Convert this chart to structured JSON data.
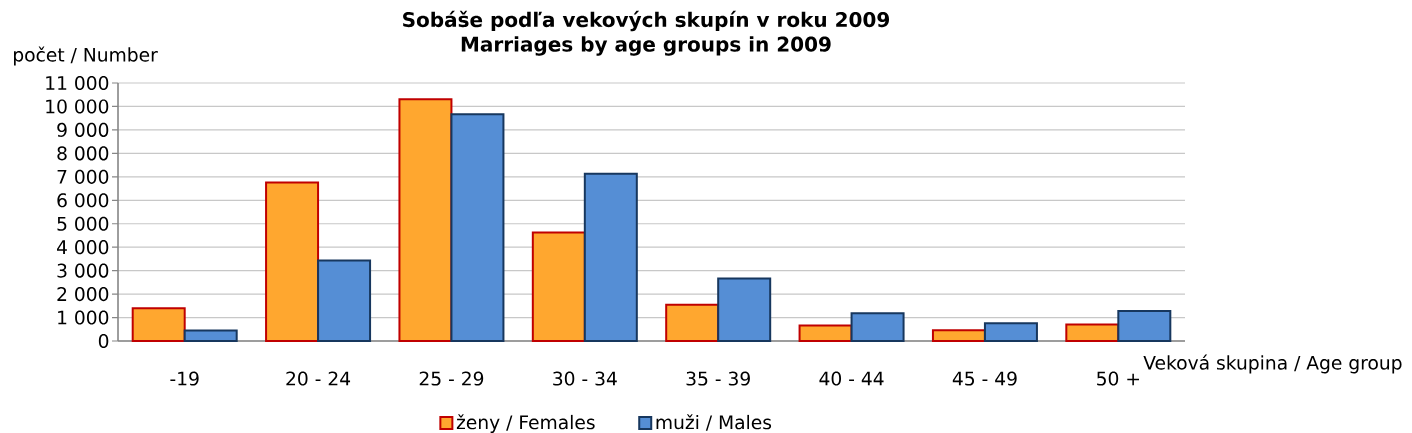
{
  "chart_data": {
    "type": "bar",
    "title": "Sobáše podľa vekových skupín v roku 2009",
    "subtitle": "Marriages  by age groups in 2009",
    "ylabel": "počet / Number",
    "xlabel": "Veková skupina / Age group",
    "categories": [
      "-19",
      "20 - 24",
      "25 - 29",
      "30 - 34",
      "35 - 39",
      "40 - 44",
      "45 - 49",
      "50 +"
    ],
    "series": [
      {
        "name": "ženy / Females",
        "color": "#ffa72f",
        "values": [
          1400,
          6760,
          10310,
          4630,
          1550,
          660,
          460,
          700
        ]
      },
      {
        "name": "muži / Males",
        "color": "#558ed5",
        "values": [
          450,
          3430,
          9670,
          7130,
          2670,
          1180,
          760,
          1280
        ]
      }
    ],
    "ylim": [
      0,
      11000
    ],
    "yticks": [
      0,
      {
        "value": 1000,
        "label": "1 000"
      },
      {
        "value": 2000,
        "label": "2 000"
      },
      {
        "value": 3000,
        "label": "3 000"
      },
      {
        "value": 4000,
        "label": "4 000"
      },
      {
        "value": 5000,
        "label": "5 000"
      },
      {
        "value": 6000,
        "label": "6 000"
      },
      {
        "value": 7000,
        "label": "7 000"
      },
      {
        "value": 8000,
        "label": "8 000"
      },
      {
        "value": 9000,
        "label": "9 000"
      },
      {
        "value": 10000,
        "label": "10 000"
      },
      {
        "value": 11000,
        "label": "11 000"
      }
    ],
    "grid": "y",
    "legend": "bottom"
  }
}
